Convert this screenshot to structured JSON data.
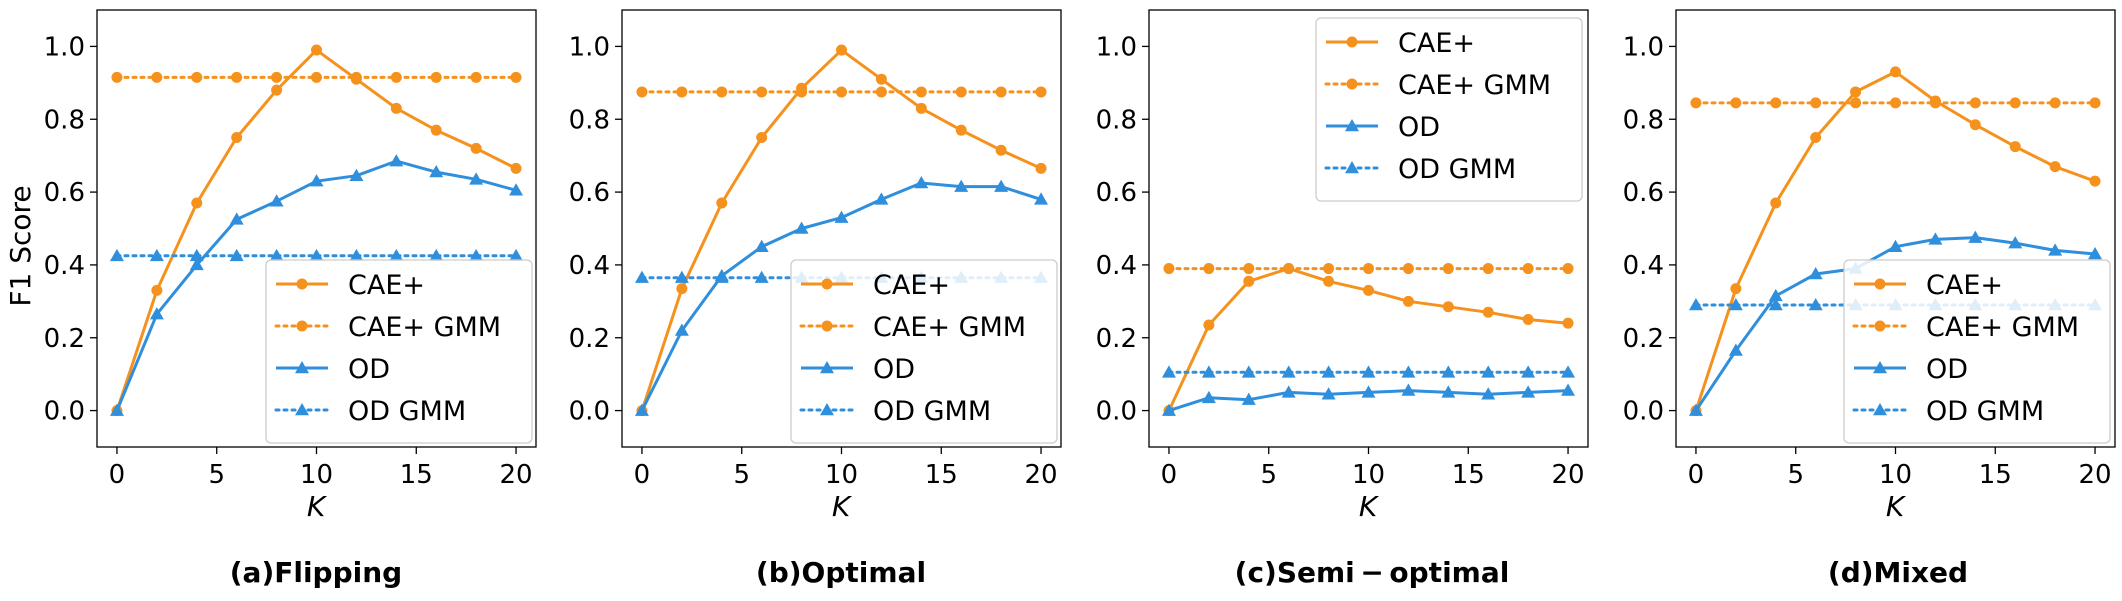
{
  "colors": {
    "cae": "#f5921e",
    "od": "#2f8fdd"
  },
  "chart_data": [
    {
      "type": "line",
      "caption": "(a)Flipping",
      "xlabel": "K",
      "ylabel": "F1 Score",
      "xlim": [
        -1,
        21
      ],
      "ylim": [
        -0.1,
        1.1
      ],
      "xticks": [
        0,
        5,
        10,
        15,
        20
      ],
      "yticks": [
        0.0,
        0.2,
        0.4,
        0.6,
        0.8,
        1.0
      ],
      "xtick_labels": [
        "0",
        "5",
        "10",
        "15",
        "20"
      ],
      "ytick_labels": [
        "0.0",
        "0.2",
        "0.4",
        "0.6",
        "0.8",
        "1.0"
      ],
      "legend_position": "lower-right",
      "x": [
        0,
        2,
        4,
        6,
        8,
        10,
        12,
        14,
        16,
        18,
        20
      ],
      "series": [
        {
          "name": "CAE+",
          "color": "cae",
          "style": "solid",
          "marker": "circle",
          "values": [
            0.0,
            0.33,
            0.57,
            0.75,
            0.88,
            0.99,
            0.91,
            0.83,
            0.77,
            0.72,
            0.665
          ]
        },
        {
          "name": "CAE+ GMM",
          "color": "cae",
          "style": "dotted",
          "marker": "circle",
          "values": [
            0.915,
            0.915,
            0.915,
            0.915,
            0.915,
            0.915,
            0.915,
            0.915,
            0.915,
            0.915,
            0.915
          ]
        },
        {
          "name": "OD",
          "color": "od",
          "style": "solid",
          "marker": "triangle",
          "values": [
            0.0,
            0.265,
            0.4,
            0.525,
            0.575,
            0.63,
            0.645,
            0.685,
            0.655,
            0.635,
            0.605
          ]
        },
        {
          "name": "OD GMM",
          "color": "od",
          "style": "dotted",
          "marker": "triangle",
          "values": [
            0.425,
            0.425,
            0.425,
            0.425,
            0.425,
            0.425,
            0.425,
            0.425,
            0.425,
            0.425,
            0.425
          ]
        }
      ]
    },
    {
      "type": "line",
      "caption": "(b)Optimal",
      "xlabel": "K",
      "ylabel": "",
      "xlim": [
        -1,
        21
      ],
      "ylim": [
        -0.1,
        1.1
      ],
      "xticks": [
        0,
        5,
        10,
        15,
        20
      ],
      "yticks": [
        0.0,
        0.2,
        0.4,
        0.6,
        0.8,
        1.0
      ],
      "xtick_labels": [
        "0",
        "5",
        "10",
        "15",
        "20"
      ],
      "ytick_labels": [
        "0.0",
        "0.2",
        "0.4",
        "0.6",
        "0.8",
        "1.0"
      ],
      "legend_position": "lower-right",
      "x": [
        0,
        2,
        4,
        6,
        8,
        10,
        12,
        14,
        16,
        18,
        20
      ],
      "series": [
        {
          "name": "CAE+",
          "color": "cae",
          "style": "solid",
          "marker": "circle",
          "values": [
            0.0,
            0.335,
            0.57,
            0.75,
            0.885,
            0.99,
            0.91,
            0.83,
            0.77,
            0.715,
            0.665
          ]
        },
        {
          "name": "CAE+ GMM",
          "color": "cae",
          "style": "dotted",
          "marker": "circle",
          "values": [
            0.875,
            0.875,
            0.875,
            0.875,
            0.875,
            0.875,
            0.875,
            0.875,
            0.875,
            0.875,
            0.875
          ]
        },
        {
          "name": "OD",
          "color": "od",
          "style": "solid",
          "marker": "triangle",
          "values": [
            0.0,
            0.22,
            0.37,
            0.45,
            0.5,
            0.53,
            0.58,
            0.625,
            0.615,
            0.615,
            0.58
          ]
        },
        {
          "name": "OD GMM",
          "color": "od",
          "style": "dotted",
          "marker": "triangle",
          "values": [
            0.365,
            0.365,
            0.365,
            0.365,
            0.365,
            0.365,
            0.365,
            0.365,
            0.365,
            0.365,
            0.365
          ]
        }
      ]
    },
    {
      "type": "line",
      "caption": "(c)Semi − optimal",
      "xlabel": "K",
      "ylabel": "",
      "xlim": [
        -1,
        21
      ],
      "ylim": [
        -0.1,
        1.1
      ],
      "xticks": [
        0,
        5,
        10,
        15,
        20
      ],
      "yticks": [
        0.0,
        0.2,
        0.4,
        0.6,
        0.8,
        1.0
      ],
      "xtick_labels": [
        "0",
        "5",
        "10",
        "15",
        "20"
      ],
      "ytick_labels": [
        "0.0",
        "0.2",
        "0.4",
        "0.6",
        "0.8",
        "1.0"
      ],
      "legend_position": "upper-right",
      "x": [
        0,
        2,
        4,
        6,
        8,
        10,
        12,
        14,
        16,
        18,
        20
      ],
      "series": [
        {
          "name": "CAE+",
          "color": "cae",
          "style": "solid",
          "marker": "circle",
          "values": [
            0.0,
            0.235,
            0.355,
            0.39,
            0.355,
            0.33,
            0.3,
            0.285,
            0.27,
            0.25,
            0.24
          ]
        },
        {
          "name": "CAE+ GMM",
          "color": "cae",
          "style": "dotted",
          "marker": "circle",
          "values": [
            0.39,
            0.39,
            0.39,
            0.39,
            0.39,
            0.39,
            0.39,
            0.39,
            0.39,
            0.39,
            0.39
          ]
        },
        {
          "name": "OD",
          "color": "od",
          "style": "solid",
          "marker": "triangle",
          "values": [
            0.0,
            0.035,
            0.03,
            0.05,
            0.045,
            0.05,
            0.055,
            0.05,
            0.045,
            0.05,
            0.055
          ]
        },
        {
          "name": "OD GMM",
          "color": "od",
          "style": "dotted",
          "marker": "triangle",
          "values": [
            0.105,
            0.105,
            0.105,
            0.105,
            0.105,
            0.105,
            0.105,
            0.105,
            0.105,
            0.105,
            0.105
          ]
        }
      ]
    },
    {
      "type": "line",
      "caption": "(d)Mixed",
      "xlabel": "K",
      "ylabel": "",
      "xlim": [
        -1,
        21
      ],
      "ylim": [
        -0.1,
        1.1
      ],
      "xticks": [
        0,
        5,
        10,
        15,
        20
      ],
      "yticks": [
        0.0,
        0.2,
        0.4,
        0.6,
        0.8,
        1.0
      ],
      "xtick_labels": [
        "0",
        "5",
        "10",
        "15",
        "20"
      ],
      "ytick_labels": [
        "0.0",
        "0.2",
        "0.4",
        "0.6",
        "0.8",
        "1.0"
      ],
      "legend_position": "lower-right",
      "x": [
        0,
        2,
        4,
        6,
        8,
        10,
        12,
        14,
        16,
        18,
        20
      ],
      "series": [
        {
          "name": "CAE+",
          "color": "cae",
          "style": "solid",
          "marker": "circle",
          "values": [
            0.0,
            0.335,
            0.57,
            0.75,
            0.875,
            0.93,
            0.85,
            0.785,
            0.725,
            0.67,
            0.63
          ]
        },
        {
          "name": "CAE+ GMM",
          "color": "cae",
          "style": "dotted",
          "marker": "circle",
          "values": [
            0.845,
            0.845,
            0.845,
            0.845,
            0.845,
            0.845,
            0.845,
            0.845,
            0.845,
            0.845,
            0.845
          ]
        },
        {
          "name": "OD",
          "color": "od",
          "style": "solid",
          "marker": "triangle",
          "values": [
            0.0,
            0.165,
            0.315,
            0.375,
            0.39,
            0.45,
            0.47,
            0.475,
            0.46,
            0.44,
            0.43
          ]
        },
        {
          "name": "OD GMM",
          "color": "od",
          "style": "dotted",
          "marker": "triangle",
          "values": [
            0.29,
            0.29,
            0.29,
            0.29,
            0.29,
            0.29,
            0.29,
            0.29,
            0.29,
            0.29,
            0.29
          ]
        }
      ]
    }
  ]
}
